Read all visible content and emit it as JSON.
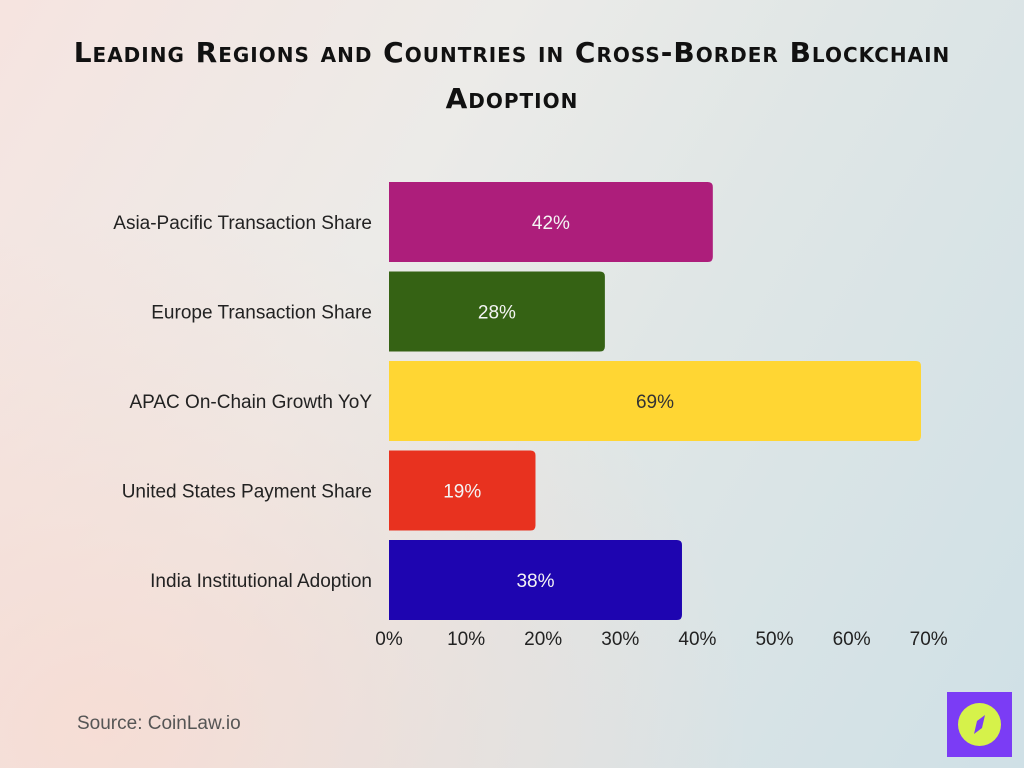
{
  "chart_data": {
    "type": "bar",
    "orientation": "horizontal",
    "title": "Leading Regions and Countries in Cross-Border Blockchain Adoption",
    "categories": [
      "Asia-Pacific Transaction Share",
      "Europe Transaction Share",
      "APAC On-Chain Growth YoY",
      "United States Payment Share",
      "India Institutional Adoption"
    ],
    "values": [
      42,
      28,
      69,
      19,
      38
    ],
    "data_labels": [
      "42%",
      "28%",
      "69%",
      "19%",
      "38%"
    ],
    "colors": [
      "#ad1e7b",
      "#356214",
      "#ffd633",
      "#e8321f",
      "#1e05b0"
    ],
    "xlim": [
      0,
      70
    ],
    "x_ticks": [
      "0%",
      "10%",
      "20%",
      "30%",
      "40%",
      "50%",
      "60%",
      "70%"
    ],
    "grid": false,
    "legend": "none"
  },
  "source": "Source: CoinLaw.io",
  "logo": {
    "icon": "compass-icon",
    "bg": "#7b3cf5",
    "fg": "#d6f24a"
  }
}
